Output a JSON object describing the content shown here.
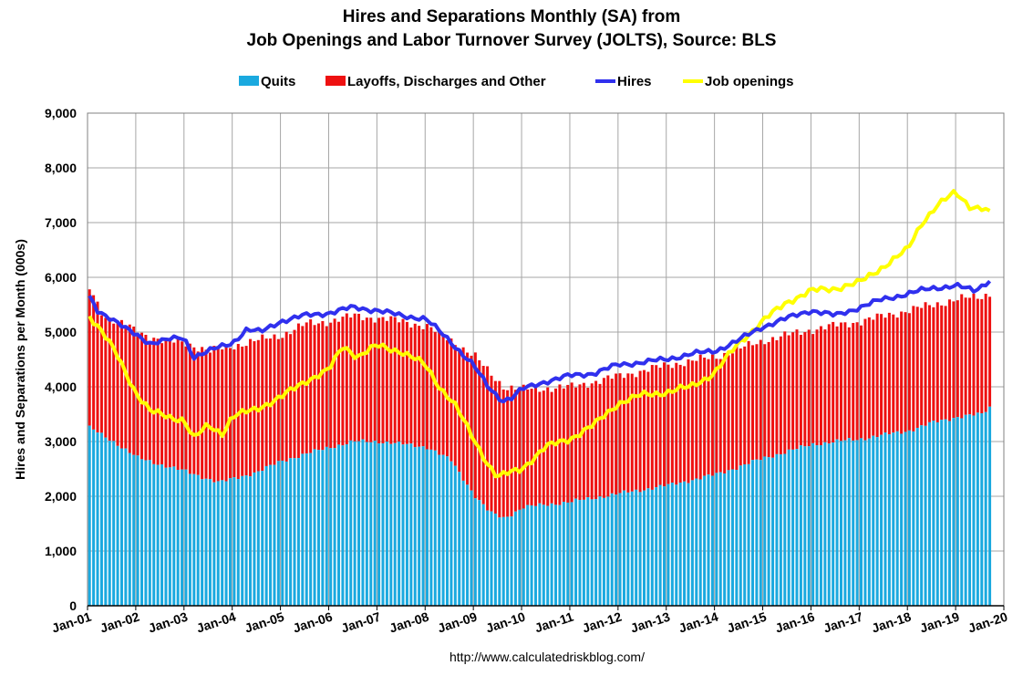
{
  "chart_data": {
    "type": "bar",
    "title_line1": "Hires and Separations Monthly (SA) from",
    "title_line2": "Job Openings and Labor Turnover Survey (JOLTS), Source: BLS",
    "ylabel": "Hires and Separations per Month (000s)",
    "source": "http://www.calculatedriskblog.com/",
    "ylim": [
      0,
      9000
    ],
    "yticks": [
      "0",
      "1,000",
      "2,000",
      "3,000",
      "4,000",
      "5,000",
      "6,000",
      "7,000",
      "8,000",
      "9,000"
    ],
    "xticks": [
      "Jan-01",
      "Jan-02",
      "Jan-03",
      "Jan-04",
      "Jan-05",
      "Jan-06",
      "Jan-07",
      "Jan-08",
      "Jan-09",
      "Jan-10",
      "Jan-11",
      "Jan-12",
      "Jan-13",
      "Jan-14",
      "Jan-15",
      "Jan-16",
      "Jan-17",
      "Jan-18",
      "Jan-19",
      "Jan-20"
    ],
    "start_year": 2001,
    "end_year": 2020,
    "legend": [
      {
        "name": "Quits",
        "color": "#1aa9df",
        "kind": "bar"
      },
      {
        "name": "Layoffs, Discharges and Other",
        "color": "#ee1111",
        "kind": "bar"
      },
      {
        "name": "Hires",
        "color": "#3030ee",
        "kind": "line"
      },
      {
        "name": "Job openings",
        "color": "#ffff00",
        "kind": "line"
      }
    ],
    "series_anchors": {
      "quits": [
        [
          2001.0,
          3250
        ],
        [
          2001.5,
          3000
        ],
        [
          2002.0,
          2700
        ],
        [
          2003.0,
          2450
        ],
        [
          2003.7,
          2250
        ],
        [
          2004.5,
          2450
        ],
        [
          2005.0,
          2650
        ],
        [
          2006.0,
          2900
        ],
        [
          2006.5,
          3000
        ],
        [
          2007.0,
          3000
        ],
        [
          2007.5,
          2950
        ],
        [
          2008.0,
          2900
        ],
        [
          2008.5,
          2650
        ],
        [
          2009.0,
          2000
        ],
        [
          2009.3,
          1700
        ],
        [
          2009.6,
          1600
        ],
        [
          2010.0,
          1800
        ],
        [
          2011.0,
          1900
        ],
        [
          2012.0,
          2050
        ],
        [
          2013.0,
          2200
        ],
        [
          2014.0,
          2400
        ],
        [
          2015.0,
          2700
        ],
        [
          2016.0,
          2950
        ],
        [
          2017.0,
          3050
        ],
        [
          2018.0,
          3200
        ],
        [
          2018.5,
          3350
        ],
        [
          2019.0,
          3450
        ],
        [
          2019.5,
          3500
        ],
        [
          2019.7,
          3650
        ],
        [
          2019.9,
          3550
        ]
      ],
      "total_separations": [
        [
          2001.0,
          5800
        ],
        [
          2001.3,
          5300
        ],
        [
          2001.7,
          5150
        ],
        [
          2002.0,
          5000
        ],
        [
          2002.5,
          4850
        ],
        [
          2003.0,
          4800
        ],
        [
          2003.5,
          4650
        ],
        [
          2004.0,
          4750
        ],
        [
          2004.5,
          4850
        ],
        [
          2005.0,
          4950
        ],
        [
          2005.5,
          5150
        ],
        [
          2006.0,
          5200
        ],
        [
          2006.5,
          5300
        ],
        [
          2007.0,
          5250
        ],
        [
          2007.5,
          5200
        ],
        [
          2008.0,
          5100
        ],
        [
          2008.5,
          4850
        ],
        [
          2009.0,
          4550
        ],
        [
          2009.3,
          4250
        ],
        [
          2009.6,
          4000
        ],
        [
          2010.0,
          3950
        ],
        [
          2011.0,
          4000
        ],
        [
          2012.0,
          4200
        ],
        [
          2013.0,
          4400
        ],
        [
          2014.0,
          4550
        ],
        [
          2015.0,
          4850
        ],
        [
          2016.0,
          5050
        ],
        [
          2017.0,
          5200
        ],
        [
          2018.0,
          5400
        ],
        [
          2019.0,
          5600
        ],
        [
          2019.5,
          5650
        ],
        [
          2019.9,
          5800
        ]
      ],
      "hires": [
        [
          2001.0,
          5700
        ],
        [
          2001.2,
          5400
        ],
        [
          2001.5,
          5250
        ],
        [
          2001.8,
          5050
        ],
        [
          2002.0,
          4950
        ],
        [
          2002.3,
          4800
        ],
        [
          2002.6,
          4850
        ],
        [
          2003.0,
          4900
        ],
        [
          2003.2,
          4550
        ],
        [
          2003.5,
          4650
        ],
        [
          2004.0,
          4800
        ],
        [
          2004.3,
          5050
        ],
        [
          2004.6,
          5000
        ],
        [
          2005.0,
          5200
        ],
        [
          2005.5,
          5300
        ],
        [
          2006.0,
          5350
        ],
        [
          2006.5,
          5450
        ],
        [
          2007.0,
          5400
        ],
        [
          2007.5,
          5300
        ],
        [
          2008.0,
          5250
        ],
        [
          2008.5,
          4850
        ],
        [
          2009.0,
          4400
        ],
        [
          2009.3,
          4000
        ],
        [
          2009.6,
          3750
        ],
        [
          2009.8,
          3800
        ],
        [
          2010.0,
          3950
        ],
        [
          2010.5,
          4100
        ],
        [
          2011.0,
          4200
        ],
        [
          2011.5,
          4250
        ],
        [
          2012.0,
          4400
        ],
        [
          2012.5,
          4450
        ],
        [
          2013.0,
          4500
        ],
        [
          2013.5,
          4600
        ],
        [
          2014.0,
          4650
        ],
        [
          2014.5,
          4850
        ],
        [
          2015.0,
          5100
        ],
        [
          2015.5,
          5250
        ],
        [
          2016.0,
          5400
        ],
        [
          2016.5,
          5300
        ],
        [
          2017.0,
          5450
        ],
        [
          2017.5,
          5600
        ],
        [
          2018.0,
          5700
        ],
        [
          2018.5,
          5800
        ],
        [
          2019.0,
          5850
        ],
        [
          2019.4,
          5750
        ],
        [
          2019.7,
          5950
        ],
        [
          2019.9,
          5950
        ]
      ],
      "job_openings": [
        [
          2001.0,
          5350
        ],
        [
          2001.3,
          5000
        ],
        [
          2001.6,
          4600
        ],
        [
          2002.0,
          3900
        ],
        [
          2002.3,
          3550
        ],
        [
          2002.7,
          3450
        ],
        [
          2003.0,
          3400
        ],
        [
          2003.2,
          3050
        ],
        [
          2003.5,
          3300
        ],
        [
          2003.8,
          3150
        ],
        [
          2004.0,
          3450
        ],
        [
          2004.5,
          3600
        ],
        [
          2005.0,
          3800
        ],
        [
          2005.5,
          4100
        ],
        [
          2006.0,
          4300
        ],
        [
          2006.3,
          4750
        ],
        [
          2006.6,
          4550
        ],
        [
          2007.0,
          4750
        ],
        [
          2007.5,
          4650
        ],
        [
          2008.0,
          4400
        ],
        [
          2008.3,
          4000
        ],
        [
          2008.6,
          3700
        ],
        [
          2009.0,
          3050
        ],
        [
          2009.3,
          2600
        ],
        [
          2009.5,
          2350
        ],
        [
          2010.0,
          2500
        ],
        [
          2010.5,
          2900
        ],
        [
          2011.0,
          3050
        ],
        [
          2011.5,
          3300
        ],
        [
          2012.0,
          3700
        ],
        [
          2012.5,
          3850
        ],
        [
          2013.0,
          3900
        ],
        [
          2013.5,
          4000
        ],
        [
          2014.0,
          4250
        ],
        [
          2014.5,
          4800
        ],
        [
          2015.0,
          5200
        ],
        [
          2015.5,
          5550
        ],
        [
          2016.0,
          5750
        ],
        [
          2016.5,
          5800
        ],
        [
          2017.0,
          5900
        ],
        [
          2017.5,
          6200
        ],
        [
          2018.0,
          6500
        ],
        [
          2018.3,
          7000
        ],
        [
          2018.6,
          7300
        ],
        [
          2019.0,
          7550
        ],
        [
          2019.3,
          7300
        ],
        [
          2019.6,
          7250
        ],
        [
          2019.9,
          7000
        ]
      ]
    }
  }
}
